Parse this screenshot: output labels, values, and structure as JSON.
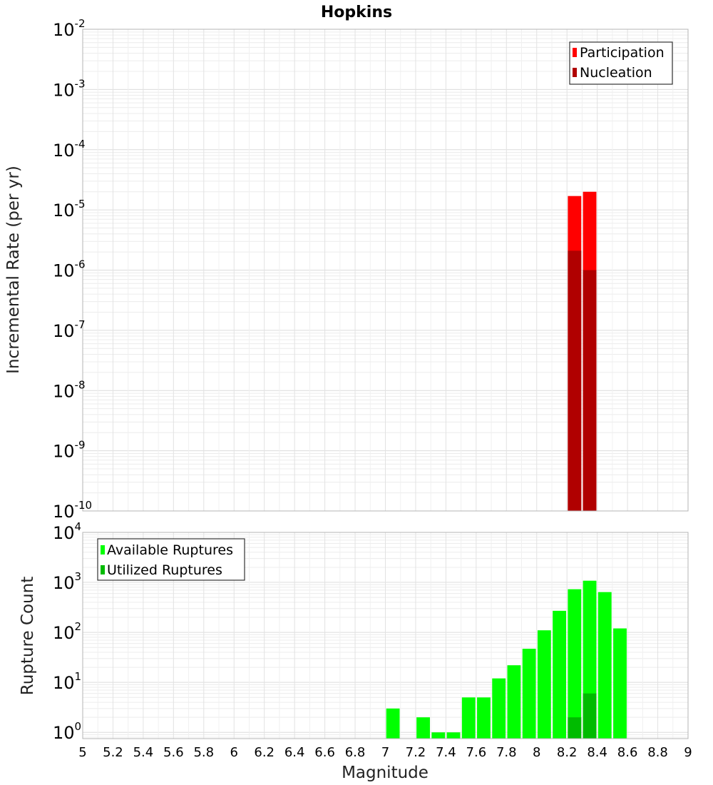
{
  "chart_data": [
    {
      "type": "bar",
      "title": "Hopkins",
      "xlabel": "",
      "ylabel": "Incremental Rate (per yr)",
      "yscale": "log",
      "ylim": [
        1e-10,
        0.01
      ],
      "xlim": [
        5,
        9
      ],
      "bin_width": 0.1,
      "grid": true,
      "legend_position": "top-right",
      "y_tick_exponents": [
        -10,
        -9,
        -8,
        -7,
        -6,
        -5,
        -4,
        -3,
        -2
      ],
      "series": [
        {
          "name": "Participation",
          "color": "#ff0000",
          "x": [
            8.25,
            8.35
          ],
          "values": [
            1.7e-05,
            2e-05
          ]
        },
        {
          "name": "Nucleation",
          "color": "#b00000",
          "x": [
            8.25,
            8.35
          ],
          "values": [
            2.1e-06,
            1e-06
          ]
        }
      ]
    },
    {
      "type": "bar",
      "title": "",
      "xlabel": "Magnitude",
      "ylabel": "Rupture Count",
      "yscale": "log",
      "ylim": [
        0.75,
        10000
      ],
      "xlim": [
        5,
        9
      ],
      "bin_width": 0.1,
      "grid": true,
      "legend_position": "top-left",
      "y_tick_exponents": [
        0,
        1,
        2,
        3,
        4
      ],
      "x_ticks": [
        "5",
        "5.2",
        "5.4",
        "5.6",
        "5.8",
        "6",
        "6.2",
        "6.4",
        "6.6",
        "6.8",
        "7",
        "7.2",
        "7.4",
        "7.6",
        "7.8",
        "8",
        "8.2",
        "8.4",
        "8.6",
        "8.8",
        "9"
      ],
      "series": [
        {
          "name": "Available Ruptures",
          "color": "#00ff00",
          "x": [
            7.05,
            7.25,
            7.35,
            7.45,
            7.55,
            7.65,
            7.75,
            7.85,
            7.95,
            8.05,
            8.15,
            8.25,
            8.35,
            8.45,
            8.55
          ],
          "values": [
            3,
            2,
            1,
            1,
            5,
            5,
            12,
            22,
            47,
            110,
            270,
            730,
            1080,
            640,
            120
          ]
        },
        {
          "name": "Utilized Ruptures",
          "color": "#00bb00",
          "x": [
            8.25,
            8.35
          ],
          "values": [
            2,
            6
          ]
        }
      ]
    }
  ]
}
